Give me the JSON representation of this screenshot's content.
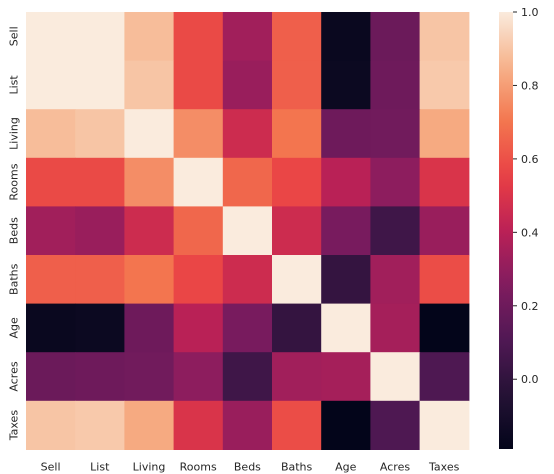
{
  "chart_data": {
    "type": "heatmap",
    "title": "",
    "xlabel": "",
    "ylabel": "",
    "x_categories": [
      "Sell",
      "List",
      "Living",
      "Rooms",
      "Beds",
      "Baths",
      "Age",
      "Acres",
      "Taxes"
    ],
    "y_categories": [
      "Sell",
      "List",
      "Living",
      "Rooms",
      "Beds",
      "Baths",
      "Age",
      "Acres",
      "Taxes"
    ],
    "values": [
      [
        1.0,
        1.0,
        0.88,
        0.58,
        0.34,
        0.64,
        -0.16,
        0.19,
        0.9
      ],
      [
        1.0,
        1.0,
        0.9,
        0.58,
        0.32,
        0.64,
        -0.15,
        0.2,
        0.91
      ],
      [
        0.88,
        0.9,
        1.0,
        0.76,
        0.46,
        0.7,
        0.2,
        0.21,
        0.83
      ],
      [
        0.58,
        0.58,
        0.76,
        1.0,
        0.66,
        0.57,
        0.4,
        0.29,
        0.5
      ],
      [
        0.34,
        0.32,
        0.46,
        0.66,
        1.0,
        0.46,
        0.23,
        0.05,
        0.32
      ],
      [
        0.64,
        0.64,
        0.7,
        0.57,
        0.46,
        1.0,
        0.01,
        0.34,
        0.59
      ],
      [
        -0.16,
        -0.15,
        0.2,
        0.4,
        0.23,
        0.01,
        1.0,
        0.35,
        -0.19
      ],
      [
        0.19,
        0.2,
        0.21,
        0.29,
        0.05,
        0.34,
        0.35,
        1.0,
        0.1
      ],
      [
        0.9,
        0.91,
        0.83,
        0.5,
        0.32,
        0.59,
        -0.19,
        0.1,
        1.0
      ]
    ],
    "colorbar": {
      "min": -0.19,
      "max": 1.0,
      "ticks": [
        0.0,
        0.2,
        0.4,
        0.6,
        0.8,
        1.0
      ],
      "tick_labels": [
        "0.0",
        "0.2",
        "0.4",
        "0.6",
        "0.8",
        "1.0"
      ]
    },
    "colormap": "rocket",
    "grid": false,
    "legend": "none"
  }
}
